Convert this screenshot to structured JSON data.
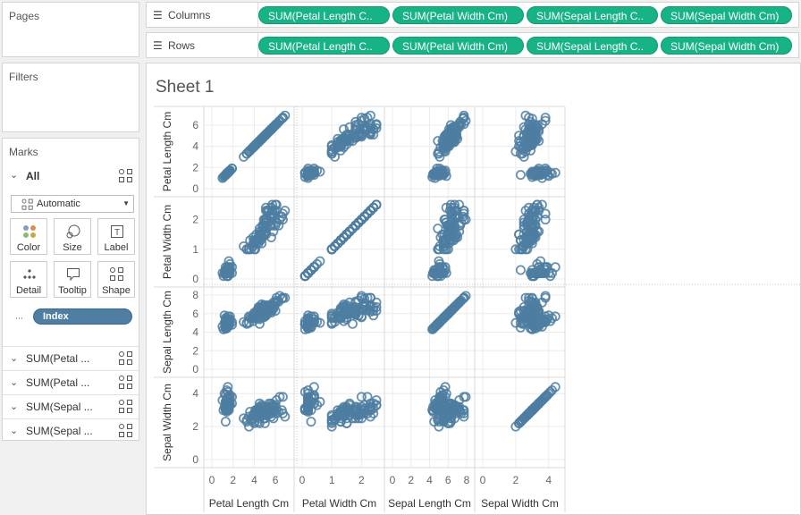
{
  "panels": {
    "pages_title": "Pages",
    "filters_title": "Filters",
    "marks_title": "Marks"
  },
  "marks": {
    "all_label": "All",
    "mark_type": "Automatic",
    "buttons": [
      "Color",
      "Size",
      "Label",
      "Detail",
      "Tooltip",
      "Shape"
    ],
    "index_pill": "Index",
    "measure_rows": [
      "SUM(Petal ...",
      "SUM(Petal ...",
      "SUM(Sepal ...",
      "SUM(Sepal ..."
    ]
  },
  "shelves": {
    "columns_label": "Columns",
    "rows_label": "Rows",
    "columns_pills": [
      "SUM(Petal Length C..",
      "SUM(Petal Width Cm)",
      "SUM(Sepal Length C..",
      "SUM(Sepal Width Cm)"
    ],
    "rows_pills": [
      "SUM(Petal Length C..",
      "SUM(Petal Width Cm)",
      "SUM(Sepal Length C..",
      "SUM(Sepal Width Cm)"
    ]
  },
  "sheet": {
    "title": "Sheet 1"
  },
  "colors": {
    "pill_green": "#17b285",
    "mark_blue": "#4e7ea1"
  },
  "chart_data": {
    "type": "scatter",
    "title": "",
    "variables": [
      "Petal Length Cm",
      "Petal Width Cm",
      "Sepal Length Cm",
      "Sepal Width Cm"
    ],
    "axis_ranges": {
      "Petal Length Cm": [
        0,
        7
      ],
      "Petal Width Cm": [
        0,
        2.5
      ],
      "Sepal Length Cm": [
        0,
        8
      ],
      "Sepal Width Cm": [
        0,
        4.5
      ]
    },
    "tick_values": {
      "Petal Length Cm": [
        0,
        2,
        4,
        6
      ],
      "Petal Width Cm": [
        0,
        1,
        2
      ],
      "Sepal Length Cm": [
        0,
        2,
        4,
        6,
        8
      ],
      "Sepal Width Cm": [
        0,
        2,
        4
      ]
    },
    "marker": "open-circle",
    "grid": true,
    "points": [
      [
        1.4,
        0.2,
        5.1,
        3.5
      ],
      [
        1.4,
        0.2,
        4.9,
        3.0
      ],
      [
        1.3,
        0.2,
        4.7,
        3.2
      ],
      [
        1.5,
        0.2,
        4.6,
        3.1
      ],
      [
        1.4,
        0.2,
        5.0,
        3.6
      ],
      [
        1.7,
        0.4,
        5.4,
        3.9
      ],
      [
        1.4,
        0.3,
        4.6,
        3.4
      ],
      [
        1.5,
        0.2,
        5.0,
        3.4
      ],
      [
        1.4,
        0.2,
        4.4,
        2.9
      ],
      [
        1.5,
        0.1,
        4.9,
        3.1
      ],
      [
        1.5,
        0.2,
        5.4,
        3.7
      ],
      [
        1.6,
        0.2,
        4.8,
        3.4
      ],
      [
        1.4,
        0.1,
        4.8,
        3.0
      ],
      [
        1.1,
        0.1,
        4.3,
        3.0
      ],
      [
        1.2,
        0.2,
        5.8,
        4.0
      ],
      [
        1.5,
        0.4,
        5.7,
        4.4
      ],
      [
        1.3,
        0.4,
        5.4,
        3.9
      ],
      [
        1.4,
        0.3,
        5.1,
        3.5
      ],
      [
        1.7,
        0.3,
        5.7,
        3.8
      ],
      [
        1.5,
        0.3,
        5.1,
        3.8
      ],
      [
        1.7,
        0.2,
        5.4,
        3.4
      ],
      [
        1.5,
        0.4,
        5.1,
        3.7
      ],
      [
        1.0,
        0.2,
        4.6,
        3.6
      ],
      [
        1.7,
        0.5,
        5.1,
        3.3
      ],
      [
        1.9,
        0.2,
        4.8,
        3.4
      ],
      [
        1.6,
        0.2,
        5.0,
        3.0
      ],
      [
        1.6,
        0.4,
        5.0,
        3.4
      ],
      [
        1.5,
        0.2,
        5.2,
        3.5
      ],
      [
        1.4,
        0.2,
        5.2,
        3.4
      ],
      [
        1.6,
        0.2,
        4.7,
        3.2
      ],
      [
        1.6,
        0.2,
        4.8,
        3.1
      ],
      [
        1.5,
        0.4,
        5.4,
        3.4
      ],
      [
        1.5,
        0.1,
        5.2,
        4.1
      ],
      [
        1.4,
        0.2,
        5.5,
        4.2
      ],
      [
        1.5,
        0.1,
        4.9,
        3.1
      ],
      [
        1.2,
        0.2,
        5.0,
        3.2
      ],
      [
        1.3,
        0.2,
        5.5,
        3.5
      ],
      [
        1.5,
        0.1,
        4.9,
        3.1
      ],
      [
        1.3,
        0.2,
        4.4,
        3.0
      ],
      [
        1.5,
        0.2,
        5.1,
        3.4
      ],
      [
        1.3,
        0.3,
        5.0,
        3.5
      ],
      [
        1.3,
        0.3,
        4.5,
        2.3
      ],
      [
        1.3,
        0.2,
        4.4,
        3.2
      ],
      [
        1.6,
        0.6,
        5.0,
        3.5
      ],
      [
        1.9,
        0.4,
        5.1,
        3.8
      ],
      [
        1.4,
        0.3,
        4.8,
        3.0
      ],
      [
        1.6,
        0.2,
        5.1,
        3.8
      ],
      [
        1.4,
        0.2,
        4.6,
        3.2
      ],
      [
        1.5,
        0.2,
        5.3,
        3.7
      ],
      [
        1.4,
        0.2,
        5.0,
        3.3
      ],
      [
        4.7,
        1.4,
        7.0,
        3.2
      ],
      [
        4.5,
        1.5,
        6.4,
        3.2
      ],
      [
        4.9,
        1.5,
        6.9,
        3.1
      ],
      [
        4.0,
        1.3,
        5.5,
        2.3
      ],
      [
        4.6,
        1.5,
        6.5,
        2.8
      ],
      [
        4.5,
        1.3,
        5.7,
        2.8
      ],
      [
        4.7,
        1.6,
        6.3,
        3.3
      ],
      [
        3.3,
        1.0,
        4.9,
        2.4
      ],
      [
        4.6,
        1.3,
        6.6,
        2.9
      ],
      [
        3.9,
        1.4,
        5.2,
        2.7
      ],
      [
        3.5,
        1.0,
        5.0,
        2.0
      ],
      [
        4.2,
        1.5,
        5.9,
        3.0
      ],
      [
        4.0,
        1.0,
        6.0,
        2.2
      ],
      [
        4.7,
        1.4,
        6.1,
        2.9
      ],
      [
        3.6,
        1.3,
        5.6,
        2.9
      ],
      [
        4.4,
        1.4,
        6.7,
        3.1
      ],
      [
        4.5,
        1.5,
        5.6,
        3.0
      ],
      [
        4.1,
        1.0,
        5.8,
        2.7
      ],
      [
        4.5,
        1.5,
        6.2,
        2.2
      ],
      [
        3.9,
        1.1,
        5.6,
        2.5
      ],
      [
        4.8,
        1.8,
        5.9,
        3.2
      ],
      [
        4.0,
        1.3,
        6.1,
        2.8
      ],
      [
        4.9,
        1.5,
        6.3,
        2.5
      ],
      [
        4.7,
        1.2,
        6.1,
        2.8
      ],
      [
        4.3,
        1.3,
        6.4,
        2.9
      ],
      [
        4.4,
        1.4,
        6.6,
        3.0
      ],
      [
        4.8,
        1.4,
        6.8,
        2.8
      ],
      [
        5.0,
        1.7,
        6.7,
        3.0
      ],
      [
        4.5,
        1.5,
        6.0,
        2.9
      ],
      [
        3.5,
        1.0,
        5.7,
        2.6
      ],
      [
        3.8,
        1.1,
        5.5,
        2.4
      ],
      [
        3.7,
        1.0,
        5.5,
        2.4
      ],
      [
        3.9,
        1.2,
        5.8,
        2.7
      ],
      [
        5.1,
        1.6,
        6.0,
        2.7
      ],
      [
        4.5,
        1.5,
        5.4,
        3.0
      ],
      [
        4.5,
        1.6,
        6.0,
        3.4
      ],
      [
        4.7,
        1.5,
        6.7,
        3.1
      ],
      [
        4.4,
        1.3,
        6.3,
        2.3
      ],
      [
        4.1,
        1.3,
        5.6,
        3.0
      ],
      [
        4.0,
        1.3,
        5.5,
        2.5
      ],
      [
        4.4,
        1.2,
        5.5,
        2.6
      ],
      [
        4.6,
        1.4,
        6.1,
        3.0
      ],
      [
        4.0,
        1.2,
        5.8,
        2.6
      ],
      [
        3.3,
        1.0,
        5.0,
        2.3
      ],
      [
        4.2,
        1.3,
        5.6,
        2.7
      ],
      [
        4.2,
        1.2,
        5.7,
        3.0
      ],
      [
        4.2,
        1.3,
        5.7,
        2.9
      ],
      [
        4.3,
        1.3,
        6.2,
        2.9
      ],
      [
        3.0,
        1.1,
        5.1,
        2.5
      ],
      [
        4.1,
        1.3,
        5.7,
        2.8
      ],
      [
        6.0,
        2.5,
        6.3,
        3.3
      ],
      [
        5.1,
        1.9,
        5.8,
        2.7
      ],
      [
        5.9,
        2.1,
        7.1,
        3.0
      ],
      [
        5.6,
        1.8,
        6.3,
        2.9
      ],
      [
        5.8,
        2.2,
        6.5,
        3.0
      ],
      [
        6.6,
        2.1,
        7.6,
        3.0
      ],
      [
        4.5,
        1.7,
        4.9,
        2.5
      ],
      [
        6.3,
        1.8,
        7.3,
        2.9
      ],
      [
        5.8,
        1.8,
        6.7,
        2.5
      ],
      [
        6.1,
        2.5,
        7.2,
        3.6
      ],
      [
        5.1,
        2.0,
        6.5,
        3.2
      ],
      [
        5.3,
        1.9,
        6.4,
        2.7
      ],
      [
        5.5,
        2.1,
        6.8,
        3.0
      ],
      [
        5.0,
        2.0,
        5.7,
        2.5
      ],
      [
        5.1,
        2.4,
        5.8,
        2.8
      ],
      [
        5.3,
        2.3,
        6.4,
        3.2
      ],
      [
        5.5,
        1.8,
        6.5,
        3.0
      ],
      [
        6.7,
        2.2,
        7.7,
        3.8
      ],
      [
        6.9,
        2.3,
        7.7,
        2.6
      ],
      [
        5.0,
        1.5,
        6.0,
        2.2
      ],
      [
        5.7,
        2.3,
        6.9,
        3.2
      ],
      [
        4.9,
        2.0,
        5.6,
        2.8
      ],
      [
        6.7,
        2.0,
        7.7,
        2.8
      ],
      [
        4.9,
        1.8,
        6.3,
        2.7
      ],
      [
        5.7,
        2.1,
        6.7,
        3.3
      ],
      [
        6.0,
        1.8,
        7.2,
        3.2
      ],
      [
        4.8,
        1.8,
        6.2,
        2.8
      ],
      [
        4.9,
        1.8,
        6.1,
        3.0
      ],
      [
        5.6,
        2.1,
        6.4,
        2.8
      ],
      [
        5.8,
        1.6,
        7.2,
        3.0
      ],
      [
        6.1,
        1.9,
        7.4,
        2.8
      ],
      [
        6.4,
        2.0,
        7.9,
        3.8
      ],
      [
        5.6,
        2.2,
        6.4,
        2.8
      ],
      [
        5.1,
        1.5,
        6.3,
        2.8
      ],
      [
        5.6,
        1.4,
        6.1,
        2.6
      ],
      [
        6.1,
        2.3,
        7.7,
        3.0
      ],
      [
        5.6,
        2.4,
        6.3,
        3.4
      ],
      [
        5.5,
        1.8,
        6.4,
        3.1
      ],
      [
        4.8,
        1.8,
        6.0,
        3.0
      ],
      [
        5.4,
        2.1,
        6.9,
        3.1
      ],
      [
        5.6,
        2.4,
        6.7,
        3.1
      ],
      [
        5.1,
        2.3,
        6.9,
        3.1
      ],
      [
        5.1,
        1.9,
        5.8,
        2.7
      ],
      [
        5.9,
        2.3,
        6.8,
        3.2
      ],
      [
        5.7,
        2.5,
        6.7,
        3.3
      ],
      [
        5.2,
        2.3,
        6.7,
        3.0
      ],
      [
        5.0,
        1.9,
        6.3,
        2.5
      ],
      [
        5.2,
        2.0,
        6.5,
        3.0
      ],
      [
        5.4,
        2.3,
        6.2,
        3.4
      ],
      [
        5.1,
        1.8,
        5.9,
        3.0
      ]
    ]
  }
}
